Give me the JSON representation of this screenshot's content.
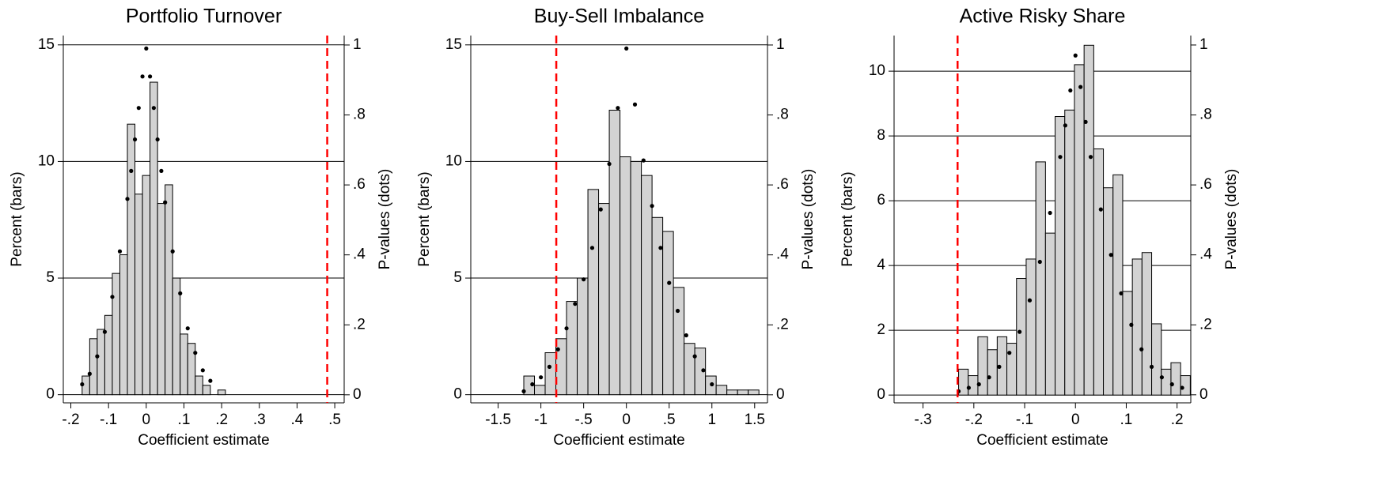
{
  "chart_data": [
    {
      "type": "histogram",
      "title": "Portfolio Turnover",
      "x_label": "Coefficient estimate",
      "y_label": "Percent (bars)",
      "y2_label": "P-values (dots)",
      "bins": [
        -0.17,
        -0.15,
        -0.13,
        -0.11,
        -0.09,
        -0.07,
        -0.05,
        -0.03,
        -0.01,
        0.01,
        0.03,
        0.05,
        0.07,
        0.09,
        0.11,
        0.13,
        0.15,
        0.17,
        0.19,
        0.21
      ],
      "values": [
        0.8,
        2.4,
        2.8,
        3.4,
        5.2,
        6.0,
        11.6,
        8.6,
        9.4,
        13.4,
        8.2,
        9.0,
        5.0,
        2.6,
        2.2,
        0.8,
        0.4,
        0,
        0.2
      ],
      "color": "#d3d3d3",
      "points": {
        "axis": "y2",
        "color": "#000000",
        "x": [
          -0.17,
          -0.15,
          -0.13,
          -0.11,
          -0.09,
          -0.07,
          -0.05,
          -0.04,
          -0.03,
          -0.02,
          -0.01,
          0,
          0.01,
          0.02,
          0.03,
          0.04,
          0.05,
          0.07,
          0.09,
          0.11,
          0.13,
          0.15,
          0.17
        ],
        "y": [
          0.03,
          0.06,
          0.11,
          0.18,
          0.28,
          0.41,
          0.56,
          0.64,
          0.73,
          0.82,
          0.91,
          0.99,
          0.91,
          0.82,
          0.73,
          0.64,
          0.55,
          0.41,
          0.29,
          0.19,
          0.12,
          0.07,
          0.04
        ]
      },
      "reference_line": {
        "x": 0.48,
        "color": "#ff0000"
      },
      "xlim": [
        -0.22,
        0.525
      ],
      "ylim": [
        -0.35,
        15.4
      ],
      "y2lim": [
        -0.023,
        1.027
      ],
      "xticks": [
        {
          "value": -0.2,
          "label": "-.2"
        },
        {
          "value": -0.1,
          "label": "-.1"
        },
        0,
        {
          "value": 0.1,
          "label": ".1"
        },
        {
          "value": 0.2,
          "label": ".2"
        },
        {
          "value": 0.3,
          "label": ".3"
        },
        {
          "value": 0.4,
          "label": ".4"
        },
        {
          "value": 0.5,
          "label": ".5"
        }
      ],
      "yticks": [
        0,
        5,
        10,
        15
      ],
      "y2ticks": [
        0,
        {
          "value": 0.2,
          "label": ".2"
        },
        {
          "value": 0.4,
          "label": ".4"
        },
        {
          "value": 0.6,
          "label": ".6"
        },
        {
          "value": 0.8,
          "label": ".8"
        },
        1
      ],
      "grid": true
    },
    {
      "type": "histogram",
      "title": "Buy-Sell Imbalance",
      "x_label": "Coefficient estimate",
      "y_label": "Percent (bars)",
      "y2_label": "P-values (dots)",
      "bins": [
        -1.2,
        -1.075,
        -0.95,
        -0.825,
        -0.7,
        -0.575,
        -0.45,
        -0.325,
        -0.2,
        -0.075,
        0.05,
        0.175,
        0.3,
        0.425,
        0.55,
        0.675,
        0.8,
        0.925,
        1.05,
        1.175,
        1.3,
        1.425,
        1.55
      ],
      "values": [
        0.8,
        0.4,
        1.8,
        2.4,
        4.0,
        5.0,
        8.8,
        8.2,
        12.2,
        10.2,
        10.0,
        9.4,
        7.6,
        7.0,
        4.6,
        2.2,
        2.0,
        0.8,
        0.4,
        0.2,
        0.2,
        0.2
      ],
      "color": "#d3d3d3",
      "points": {
        "axis": "y2",
        "color": "#000000",
        "x": [
          -1.2,
          -1.1,
          -1.0,
          -0.9,
          -0.8,
          -0.7,
          -0.6,
          -0.5,
          -0.4,
          -0.3,
          -0.2,
          -0.1,
          0,
          0.1,
          0.2,
          0.3,
          0.4,
          0.5,
          0.6,
          0.7,
          0.8,
          0.9,
          1.0
        ],
        "y": [
          0.01,
          0.03,
          0.05,
          0.08,
          0.13,
          0.19,
          0.26,
          0.33,
          0.42,
          0.53,
          0.66,
          0.82,
          0.99,
          0.83,
          0.67,
          0.54,
          0.42,
          0.32,
          0.24,
          0.17,
          0.11,
          0.07,
          0.03
        ]
      },
      "reference_line": {
        "x": -0.82,
        "color": "#ff0000"
      },
      "xlim": [
        -1.82,
        1.65
      ],
      "ylim": [
        -0.35,
        15.4
      ],
      "y2lim": [
        -0.023,
        1.027
      ],
      "xticks": [
        -1.5,
        -1,
        {
          "value": -0.5,
          "label": "-.5"
        },
        0,
        {
          "value": 0.5,
          "label": ".5"
        },
        1,
        1.5
      ],
      "yticks": [
        0,
        5,
        10,
        15
      ],
      "y2ticks": [
        0,
        {
          "value": 0.2,
          "label": ".2"
        },
        {
          "value": 0.4,
          "label": ".4"
        },
        {
          "value": 0.6,
          "label": ".6"
        },
        {
          "value": 0.8,
          "label": ".8"
        },
        1
      ],
      "grid": true
    },
    {
      "type": "histogram",
      "title": "Active Risky Share",
      "x_label": "Coefficient estimate",
      "y_label": "Percent (bars)",
      "y2_label": "P-values (dots)",
      "bins": [
        -0.23,
        -0.211,
        -0.192,
        -0.173,
        -0.154,
        -0.135,
        -0.116,
        -0.097,
        -0.078,
        -0.059,
        -0.04,
        -0.021,
        -0.002,
        0.017,
        0.036,
        0.055,
        0.074,
        0.093,
        0.112,
        0.131,
        0.15,
        0.169,
        0.188,
        0.207,
        0.226
      ],
      "values": [
        0.8,
        0.6,
        1.8,
        1.4,
        1.8,
        1.6,
        3.6,
        4.2,
        7.2,
        5.0,
        8.6,
        8.8,
        10.2,
        10.8,
        7.6,
        6.4,
        6.8,
        3.2,
        4.2,
        4.4,
        2.2,
        0.8,
        1.0,
        0.6
      ],
      "color": "#d3d3d3",
      "points": {
        "axis": "y2",
        "color": "#000000",
        "x": [
          -0.23,
          -0.21,
          -0.19,
          -0.17,
          -0.15,
          -0.13,
          -0.11,
          -0.09,
          -0.07,
          -0.05,
          -0.03,
          -0.02,
          -0.01,
          0,
          0.01,
          0.02,
          0.03,
          0.05,
          0.07,
          0.09,
          0.11,
          0.13,
          0.15,
          0.17,
          0.19,
          0.21
        ],
        "y": [
          0.01,
          0.02,
          0.03,
          0.05,
          0.08,
          0.12,
          0.18,
          0.27,
          0.38,
          0.52,
          0.68,
          0.77,
          0.87,
          0.97,
          0.88,
          0.78,
          0.68,
          0.53,
          0.4,
          0.29,
          0.2,
          0.13,
          0.08,
          0.05,
          0.03,
          0.02
        ]
      },
      "reference_line": {
        "x": -0.232,
        "color": "#ff0000"
      },
      "xlim": [
        -0.357,
        0.227
      ],
      "ylim": [
        -0.24,
        11.1
      ],
      "y2lim": [
        -0.023,
        1.027
      ],
      "xticks": [
        {
          "value": -0.3,
          "label": "-.3"
        },
        {
          "value": -0.2,
          "label": "-.2"
        },
        {
          "value": -0.1,
          "label": "-.1"
        },
        0,
        {
          "value": 0.1,
          "label": ".1"
        },
        {
          "value": 0.2,
          "label": ".2"
        }
      ],
      "yticks": [
        0,
        2,
        4,
        6,
        8,
        10
      ],
      "y2ticks": [
        0,
        {
          "value": 0.2,
          "label": ".2"
        },
        {
          "value": 0.4,
          "label": ".4"
        },
        {
          "value": 0.6,
          "label": ".6"
        },
        {
          "value": 0.8,
          "label": ".8"
        },
        1
      ],
      "grid": true
    }
  ]
}
